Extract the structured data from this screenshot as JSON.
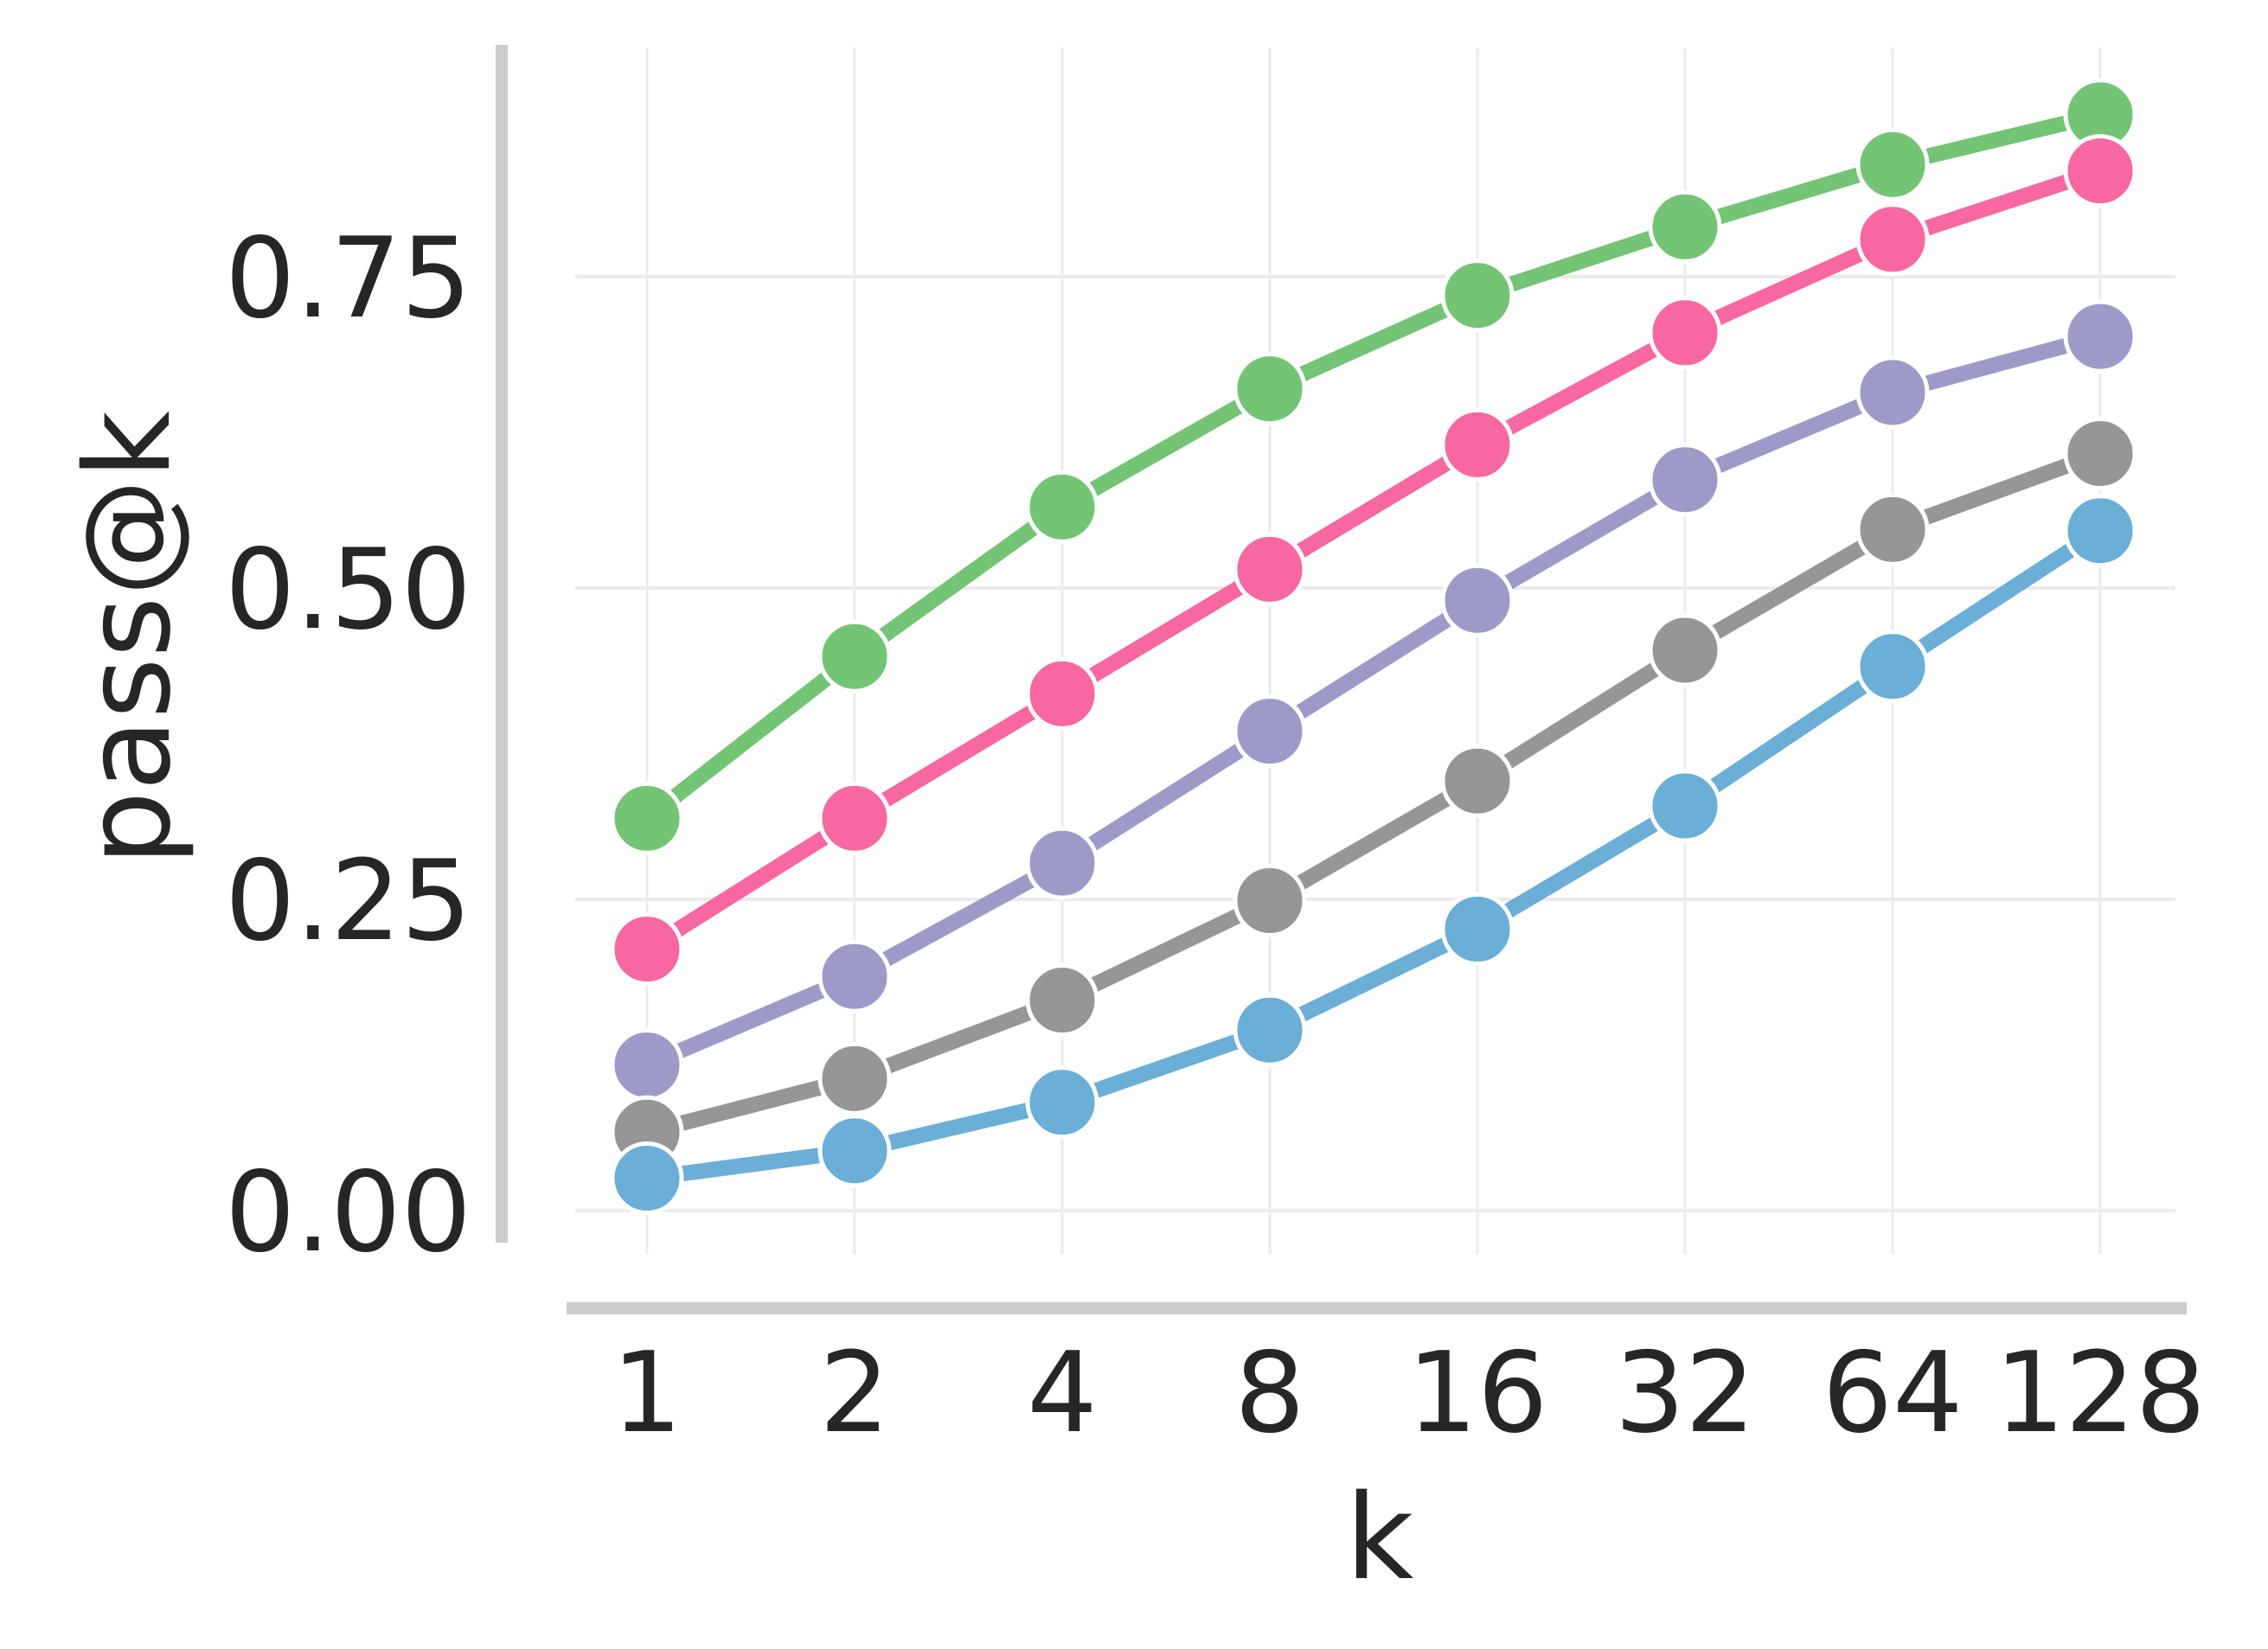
{
  "chart_data": {
    "type": "line",
    "title": "",
    "xlabel": "k",
    "ylabel": "pass@k",
    "x": [
      1,
      2,
      4,
      8,
      16,
      32,
      64,
      128
    ],
    "x_tick_labels": [
      "1",
      "2",
      "4",
      "8",
      "16",
      "32",
      "64",
      "128"
    ],
    "x_scale": "log2",
    "y_ticks": [
      0.0,
      0.25,
      0.5,
      0.75
    ],
    "y_tick_labels": [
      "0.00",
      "0.25",
      "0.50",
      "0.75"
    ],
    "ylim": [
      -0.03,
      0.93
    ],
    "grid": true,
    "legend": "none",
    "series": [
      {
        "color": "#74c476",
        "values": [
          0.315,
          0.445,
          0.565,
          0.66,
          0.735,
          0.79,
          0.84,
          0.88
        ]
      },
      {
        "color": "#f768a1",
        "values": [
          0.21,
          0.315,
          0.415,
          0.515,
          0.615,
          0.705,
          0.78,
          0.835
        ]
      },
      {
        "color": "#9e9ac8",
        "values": [
          0.117,
          0.188,
          0.279,
          0.385,
          0.49,
          0.587,
          0.657,
          0.702
        ]
      },
      {
        "color": "#969696",
        "values": [
          0.063,
          0.106,
          0.169,
          0.249,
          0.345,
          0.45,
          0.547,
          0.608
        ]
      },
      {
        "color": "#6baed6",
        "values": [
          0.026,
          0.048,
          0.087,
          0.145,
          0.226,
          0.325,
          0.437,
          0.546
        ]
      }
    ]
  }
}
